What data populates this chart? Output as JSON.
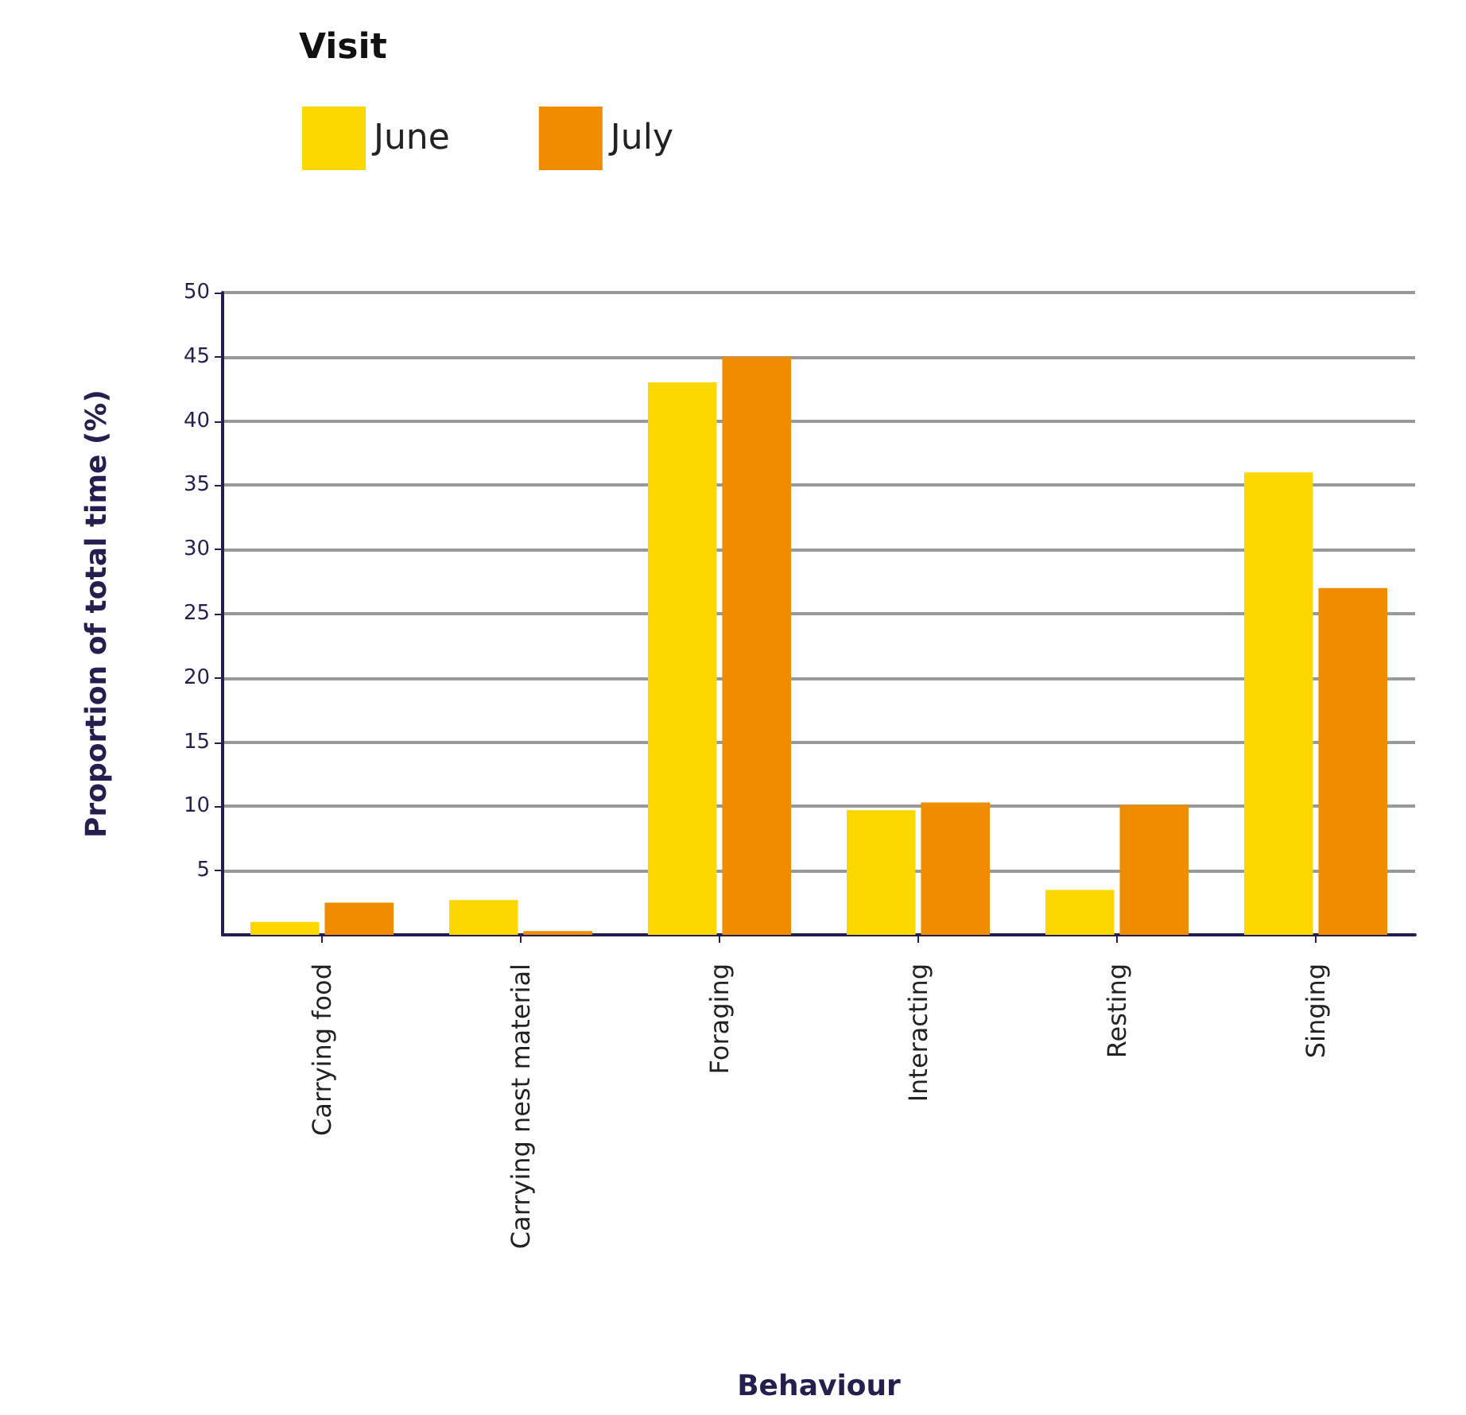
{
  "chart_data": {
    "type": "bar",
    "legend_title": "Visit",
    "xlabel": "Behaviour",
    "ylabel": "Proportion of total time (%)",
    "categories": [
      "Carrying food",
      "Carrying nest material",
      "Foraging",
      "Interacting",
      "Resting",
      "Singing"
    ],
    "series": [
      {
        "name": "June",
        "color": "#fdd700",
        "values": [
          1.0,
          2.7,
          43,
          9.7,
          3.5,
          36
        ]
      },
      {
        "name": "July",
        "color": "#f08c00",
        "values": [
          2.5,
          0.3,
          45,
          10.3,
          10.1,
          27
        ]
      }
    ],
    "ylim": [
      0,
      50
    ],
    "yticks": [
      5,
      10,
      15,
      20,
      25,
      30,
      35,
      40,
      45,
      50
    ],
    "grid": "y",
    "legend": "top left"
  }
}
